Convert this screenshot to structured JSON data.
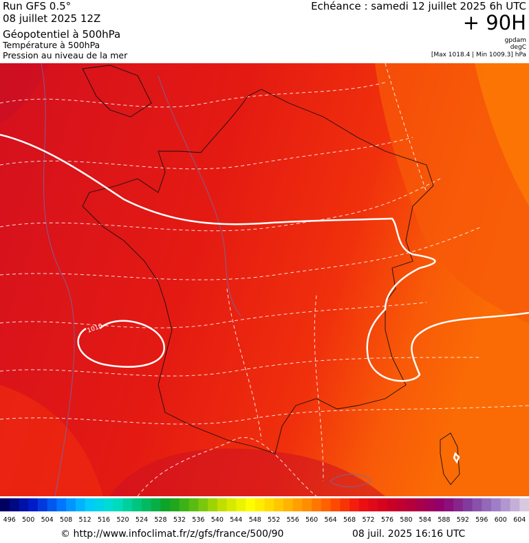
{
  "header": {
    "left": [
      "Run GFS 0.5°",
      "08 juillet 2025 12Z",
      "Géopotentiel à 500hPa",
      "Température à 500hPa",
      "Pression au niveau de la mer"
    ],
    "echeance": "Echéance : samedi 12 juillet 2025 6h UTC",
    "lead": "+ 90H",
    "units": [
      "gpdam",
      "degC",
      "[Max 1018.4 | Min 1009.3] hPa"
    ]
  },
  "map": {
    "contour_label": "1010"
  },
  "colorbar": {
    "labels": [
      496,
      500,
      504,
      508,
      512,
      516,
      520,
      524,
      528,
      532,
      536,
      540,
      544,
      548,
      552,
      556,
      560,
      564,
      568,
      572,
      576,
      580,
      584,
      588,
      592,
      596,
      600,
      604
    ]
  },
  "footer": {
    "url": "© http://www.infoclimat.fr/z/gfs/france/500/90",
    "timestamp": "08 juil. 2025 16:16 UTC"
  }
}
